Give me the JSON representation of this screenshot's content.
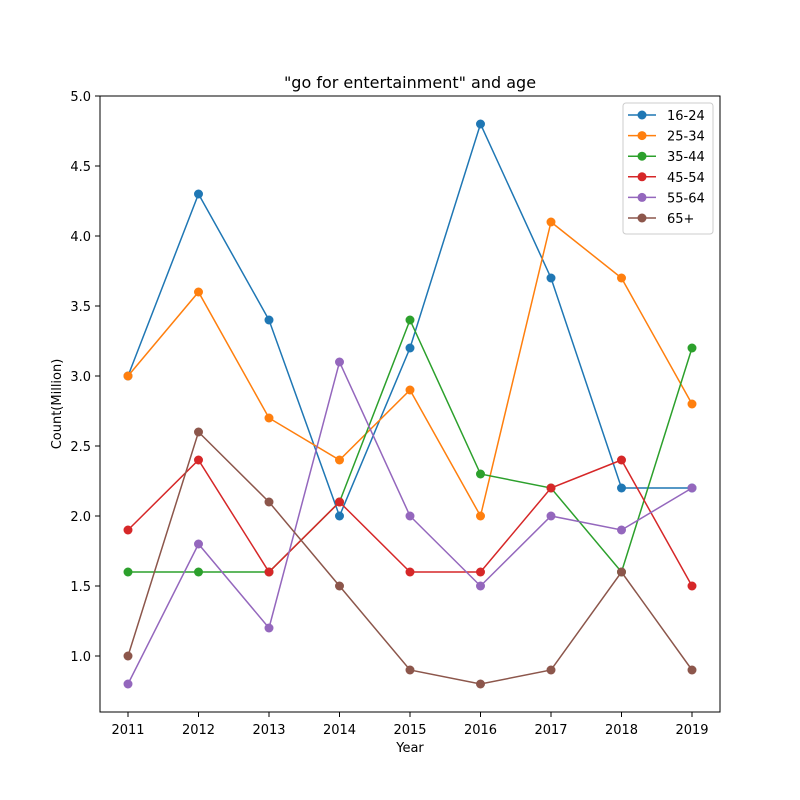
{
  "chart_data": {
    "type": "line",
    "title": "\"go for entertainment\" and age",
    "xlabel": "Year",
    "ylabel": "Count(Million)",
    "x": [
      "2011",
      "2012",
      "2013",
      "2014",
      "2015",
      "2016",
      "2017",
      "2018",
      "2019"
    ],
    "ylim": [
      0.6,
      5.0
    ],
    "yticks": [
      "1.0",
      "1.5",
      "2.0",
      "2.5",
      "3.0",
      "3.5",
      "4.0",
      "4.5",
      "5.0"
    ],
    "legend_position": "top-right",
    "grid": false,
    "series": [
      {
        "name": "16-24",
        "color": "#1f77b4",
        "values": [
          3.0,
          4.3,
          3.4,
          2.0,
          3.2,
          4.8,
          3.7,
          2.2,
          2.2
        ]
      },
      {
        "name": "25-34",
        "color": "#ff7f0e",
        "values": [
          3.0,
          3.6,
          2.7,
          2.4,
          2.9,
          2.0,
          4.1,
          3.7,
          2.8
        ]
      },
      {
        "name": "35-44",
        "color": "#2ca02c",
        "values": [
          1.6,
          1.6,
          1.6,
          2.1,
          3.4,
          2.3,
          2.2,
          1.6,
          3.2
        ]
      },
      {
        "name": "45-54",
        "color": "#d62728",
        "values": [
          1.9,
          2.4,
          1.6,
          2.1,
          1.6,
          1.6,
          2.2,
          2.4,
          1.5
        ]
      },
      {
        "name": "55-64",
        "color": "#9467bd",
        "values": [
          0.8,
          1.8,
          1.2,
          3.1,
          2.0,
          1.5,
          2.0,
          1.9,
          2.2
        ]
      },
      {
        "name": "65+",
        "color": "#8c564b",
        "values": [
          1.0,
          2.6,
          2.1,
          1.5,
          0.9,
          0.8,
          0.9,
          1.6,
          0.9
        ]
      }
    ]
  }
}
